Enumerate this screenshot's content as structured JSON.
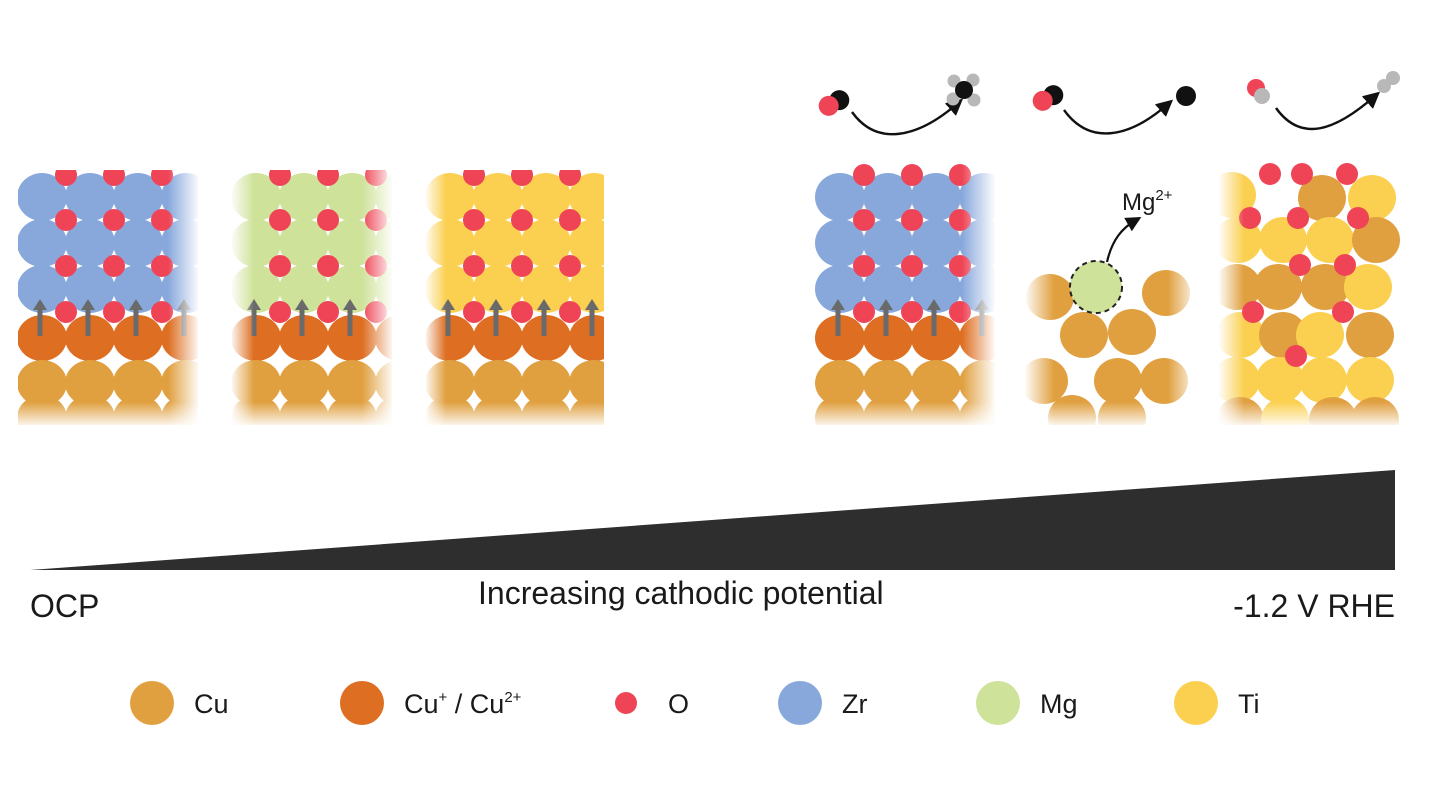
{
  "colors": {
    "cu": "#e0a040",
    "cu_oxide": "#dd6e22",
    "o": "#ee4455",
    "zr": "#88a8dc",
    "mg": "#cfe29a",
    "ti": "#fbd050",
    "arrow": "#6a6a6a",
    "wedge": "#2e2e2e",
    "molecule_c": "#111111",
    "molecule_h": "#b8b8b8"
  },
  "potential": {
    "left_label": "OCP",
    "center_label": "Increasing cathodic potential",
    "right_label": "-1.2 V RHE"
  },
  "annotation": {
    "ion_base": "Mg",
    "ion_charge": "2+"
  },
  "legend": [
    {
      "key": "cu",
      "label": "Cu",
      "sup": ""
    },
    {
      "key": "cu_oxide",
      "label": "Cu",
      "sup": "+",
      "label2": " / Cu",
      "sup2": "2+"
    },
    {
      "key": "o",
      "label": "O",
      "sup": ""
    },
    {
      "key": "zr",
      "label": "Zr",
      "sup": ""
    },
    {
      "key": "mg",
      "label": "Mg",
      "sup": ""
    },
    {
      "key": "ti",
      "label": "Ti",
      "sup": ""
    }
  ]
}
